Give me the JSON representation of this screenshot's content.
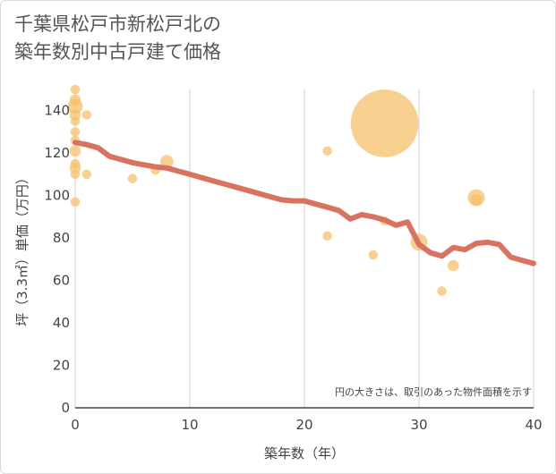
{
  "title_lines": [
    "千葉県松戸市新松戸北の",
    "築年数別中古戸建て価格"
  ],
  "chart_data": {
    "type": "scatter",
    "title": "千葉県松戸市新松戸北の築年数別中古戸建て価格",
    "xlabel": "築年数（年）",
    "ylabel": "坪（3.3㎡）単価（万円）",
    "xlim": [
      0,
      40
    ],
    "ylim": [
      0,
      150
    ],
    "x_ticks": [
      0,
      10,
      20,
      30,
      40
    ],
    "y_ticks": [
      0,
      20,
      40,
      60,
      80,
      100,
      120,
      140
    ],
    "grid": "vertical",
    "annotation": "円の大きさは、取引のあった物件面積を示す",
    "colors": {
      "bubble": "#f5c26b",
      "trend": "#d97360",
      "grid": "#c9d3e3",
      "text": "#444444"
    },
    "bubbles": [
      {
        "x": 0,
        "y": 150,
        "size": 5
      },
      {
        "x": 0,
        "y": 145,
        "size": 6
      },
      {
        "x": 0,
        "y": 142,
        "size": 8
      },
      {
        "x": 0,
        "y": 138,
        "size": 6
      },
      {
        "x": 0,
        "y": 135,
        "size": 5
      },
      {
        "x": 0,
        "y": 130,
        "size": 5
      },
      {
        "x": 0,
        "y": 126,
        "size": 5
      },
      {
        "x": 0,
        "y": 121,
        "size": 6
      },
      {
        "x": 0,
        "y": 115,
        "size": 5
      },
      {
        "x": 0,
        "y": 113,
        "size": 6
      },
      {
        "x": 0,
        "y": 110,
        "size": 5
      },
      {
        "x": 0,
        "y": 97,
        "size": 5
      },
      {
        "x": 1,
        "y": 138,
        "size": 5
      },
      {
        "x": 1,
        "y": 110,
        "size": 5
      },
      {
        "x": 5,
        "y": 108,
        "size": 5
      },
      {
        "x": 7,
        "y": 112,
        "size": 5
      },
      {
        "x": 8,
        "y": 116,
        "size": 7
      },
      {
        "x": 22,
        "y": 121,
        "size": 5
      },
      {
        "x": 22,
        "y": 81,
        "size": 5
      },
      {
        "x": 26,
        "y": 72,
        "size": 5
      },
      {
        "x": 27,
        "y": 134,
        "size": 36
      },
      {
        "x": 27,
        "y": 88,
        "size": 5
      },
      {
        "x": 30,
        "y": 78,
        "size": 9
      },
      {
        "x": 32,
        "y": 55,
        "size": 5
      },
      {
        "x": 33,
        "y": 67,
        "size": 6
      },
      {
        "x": 35,
        "y": 99,
        "size": 9
      },
      {
        "x": 35,
        "y": 98,
        "size": 6
      }
    ],
    "trend": {
      "x": [
        0,
        1,
        2,
        3,
        4,
        5,
        6,
        7,
        8,
        9,
        10,
        11,
        12,
        13,
        14,
        15,
        16,
        17,
        18,
        19,
        20,
        21,
        22,
        23,
        24,
        25,
        26,
        27,
        28,
        29,
        30,
        31,
        32,
        33,
        34,
        35,
        36,
        37,
        38,
        39,
        40
      ],
      "y": [
        125,
        124,
        122.5,
        118.5,
        117,
        115.5,
        114.5,
        113.5,
        113,
        111.5,
        110,
        108.5,
        107,
        105.5,
        104,
        102.5,
        101,
        99.5,
        98,
        97.5,
        97.5,
        96,
        94.5,
        93,
        89,
        91,
        90,
        88.5,
        86,
        87.5,
        77,
        73,
        71.5,
        75.5,
        74.5,
        77.5,
        78,
        77,
        71,
        69.5,
        68
      ]
    }
  }
}
